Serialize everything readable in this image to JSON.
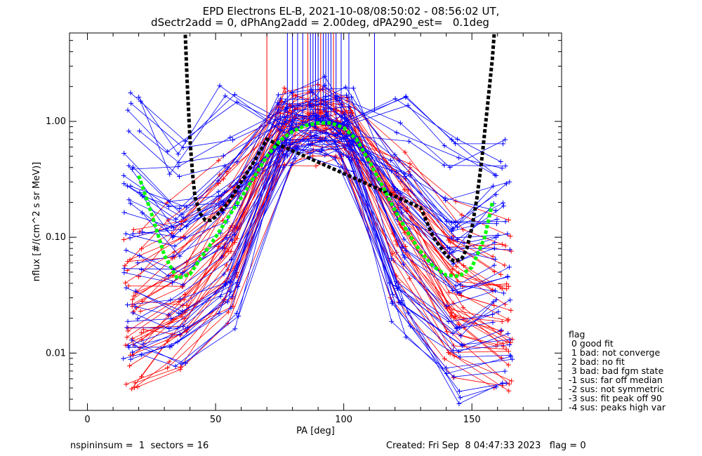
{
  "title_line1": "EPD Electrons EL-B, 2021-10-08/08:50:02 - 08:56:02 UT,",
  "title_line2": "dSectr2add = 0, dPhAng2add = 2.00deg, dPA290_est=   0.1deg",
  "footer_left": "nspininsum =  1  sectors = 16",
  "footer_right": "Created: Fri Sep  8 04:47:33 2023   flag = 0",
  "legend": {
    "title": "flag",
    "items": [
      " 0 good fit",
      " 1 bad: not converge",
      " 2 bad: no fit",
      " 3 bad: bad fgm state",
      "-1 sus: far off median",
      "-2 sus: not symmetric",
      "-3 sus: fit peak off 90",
      "-4 sus: peaks high var"
    ]
  },
  "colors": {
    "series_a": "#ff0000",
    "series_b": "#0000ff",
    "fit": "#00ff00",
    "model": "#000000"
  },
  "chart_data": {
    "type": "line",
    "xlabel": "PA [deg]",
    "ylabel": "nflux [#/(cm^2 s sr MeV)]",
    "xlim": [
      -7,
      185
    ],
    "ylim": [
      0.0032,
      5.8
    ],
    "yscale": "log",
    "xticks": [
      0,
      50,
      100,
      150
    ],
    "yticks": [
      0.01,
      0.1,
      1.0
    ],
    "ytick_labels": [
      "0.01",
      "0.10",
      "1.00"
    ],
    "pitch_angles": [
      18,
      35,
      55,
      78,
      90,
      100,
      122,
      143,
      162
    ],
    "series_a_profiles": [
      [
        0.006,
        0.012,
        0.03,
        0.8,
        0.9,
        0.7,
        0.05,
        0.01,
        0.007
      ],
      [
        0.008,
        0.015,
        0.05,
        0.9,
        1.05,
        0.9,
        0.08,
        0.015,
        0.009
      ],
      [
        0.012,
        0.02,
        0.06,
        0.85,
        1.0,
        0.85,
        0.12,
        0.02,
        0.012
      ],
      [
        0.02,
        0.03,
        0.1,
        0.9,
        1.1,
        0.8,
        0.15,
        0.03,
        0.02
      ],
      [
        0.03,
        0.05,
        0.15,
        1.0,
        1.15,
        0.9,
        0.2,
        0.05,
        0.03
      ],
      [
        0.05,
        0.08,
        0.25,
        1.1,
        1.2,
        1.0,
        0.3,
        0.08,
        0.05
      ],
      [
        0.1,
        0.15,
        0.4,
        1.2,
        1.1,
        0.95,
        0.35,
        0.15,
        0.12
      ],
      [
        0.01,
        0.012,
        0.04,
        0.7,
        0.85,
        0.75,
        0.06,
        0.012,
        0.008
      ],
      [
        0.015,
        0.025,
        0.08,
        0.8,
        0.95,
        0.8,
        0.1,
        0.025,
        0.015
      ],
      [
        0.04,
        0.07,
        0.2,
        0.95,
        1.0,
        0.85,
        0.2,
        0.06,
        0.04
      ]
    ],
    "series_b_profiles": [
      [
        1.3,
        0.45,
        1.35,
        0.8,
        0.9,
        0.8,
        1.35,
        0.6,
        0.45
      ],
      [
        0.75,
        0.33,
        0.5,
        0.9,
        1.0,
        0.9,
        0.65,
        0.3,
        0.3
      ],
      [
        0.3,
        0.2,
        0.4,
        0.95,
        1.05,
        0.95,
        0.4,
        0.15,
        0.2
      ],
      [
        0.15,
        0.1,
        0.2,
        1.0,
        1.1,
        1.0,
        0.25,
        0.08,
        0.1
      ],
      [
        0.08,
        0.06,
        0.12,
        0.9,
        1.0,
        0.9,
        0.12,
        0.05,
        0.06
      ],
      [
        0.05,
        0.04,
        0.08,
        0.85,
        0.95,
        0.85,
        0.08,
        0.03,
        0.04
      ],
      [
        0.03,
        0.025,
        0.05,
        0.8,
        0.95,
        0.8,
        0.05,
        0.02,
        0.025
      ],
      [
        0.015,
        0.015,
        0.03,
        0.75,
        0.9,
        0.7,
        0.03,
        0.012,
        0.015
      ],
      [
        0.008,
        0.01,
        0.02,
        0.7,
        0.85,
        0.6,
        0.02,
        0.004,
        0.005
      ],
      [
        0.12,
        0.08,
        0.15,
        0.9,
        1.05,
        0.9,
        0.15,
        0.05,
        0.1
      ],
      [
        0.02,
        0.02,
        0.04,
        0.8,
        1.0,
        0.8,
        0.04,
        0.015,
        0.02
      ],
      [
        0.5,
        0.25,
        0.3,
        0.95,
        1.1,
        1.0,
        0.5,
        0.2,
        0.35
      ]
    ],
    "spike_pa": [
      70,
      78,
      80,
      82,
      84,
      86,
      87,
      88,
      89,
      90,
      91,
      92,
      93,
      94,
      95,
      96,
      97,
      99,
      102,
      112
    ],
    "fit_curve": {
      "x": [
        20,
        25,
        30,
        35,
        40,
        45,
        50,
        55,
        60,
        65,
        70,
        75,
        80,
        85,
        90,
        95,
        100,
        105,
        110,
        115,
        120,
        125,
        130,
        135,
        140,
        145,
        150,
        155,
        158
      ],
      "y": [
        0.34,
        0.16,
        0.07,
        0.044,
        0.048,
        0.07,
        0.1,
        0.15,
        0.22,
        0.33,
        0.5,
        0.68,
        0.82,
        0.92,
        0.97,
        0.97,
        0.88,
        0.7,
        0.45,
        0.28,
        0.17,
        0.11,
        0.075,
        0.056,
        0.047,
        0.046,
        0.055,
        0.1,
        0.2
      ]
    },
    "model_curve": {
      "x": [
        38,
        39,
        40,
        41,
        42,
        44,
        46,
        48,
        50,
        55,
        60,
        65,
        70,
        130,
        135,
        140,
        143,
        146,
        148,
        150,
        152,
        154,
        156,
        158,
        159
      ],
      "y": [
        7,
        2,
        0.7,
        0.35,
        0.22,
        0.16,
        0.14,
        0.14,
        0.15,
        0.2,
        0.3,
        0.45,
        0.7,
        0.18,
        0.1,
        0.07,
        0.062,
        0.065,
        0.08,
        0.12,
        0.22,
        0.5,
        1.3,
        3.5,
        7
      ]
    }
  }
}
